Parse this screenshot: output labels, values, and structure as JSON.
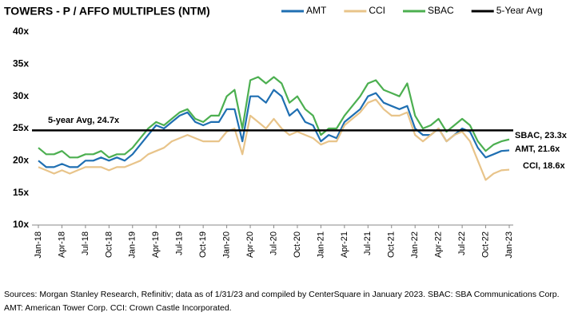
{
  "chart_data": {
    "type": "line",
    "title": "TOWERS - P / AFFO MULTIPLES (NTM)",
    "categories": [
      "Jan-18",
      null,
      null,
      "Apr-18",
      null,
      null,
      "Jul-18",
      null,
      null,
      "Oct-18",
      null,
      null,
      "Jan-19",
      null,
      null,
      "Apr-19",
      null,
      null,
      "Jul-19",
      null,
      null,
      "Oct-19",
      null,
      null,
      "Jan-20",
      null,
      null,
      "Apr-20",
      null,
      null,
      "Jul-20",
      null,
      null,
      "Oct-20",
      null,
      null,
      "Jan-21",
      null,
      null,
      "Apr-21",
      null,
      null,
      "Jul-21",
      null,
      null,
      "Oct-21",
      null,
      null,
      "Jan-22",
      null,
      null,
      "Apr-22",
      null,
      null,
      "Jul-22",
      null,
      null,
      "Oct-22",
      null,
      null,
      "Jan-23"
    ],
    "series": [
      {
        "name": "AMT",
        "color": "#1f6fb2",
        "values": [
          20,
          19,
          19,
          19.5,
          19,
          19,
          20,
          20,
          20.5,
          20,
          20.5,
          20,
          21,
          22.5,
          24,
          25.5,
          25,
          26,
          27,
          27.5,
          26,
          25.5,
          26,
          26,
          28,
          28,
          23,
          30,
          30,
          29,
          31,
          30,
          27,
          28,
          26,
          25.5,
          23,
          24,
          23.5,
          26,
          27,
          28,
          30,
          30.5,
          29,
          28.5,
          28,
          28.5,
          25,
          24,
          24,
          25,
          23,
          24,
          25,
          24.5,
          22,
          20.5,
          21,
          21.5,
          21.6
        ]
      },
      {
        "name": "CCI",
        "color": "#e8c48a",
        "values": [
          19,
          18.5,
          18,
          18.5,
          18,
          18.5,
          19,
          19,
          19,
          18.5,
          19,
          19,
          19.5,
          20,
          21,
          21.5,
          22,
          23,
          23.5,
          24,
          23.5,
          23,
          23,
          23,
          24.5,
          25,
          21,
          27,
          26,
          25,
          26.5,
          25,
          24,
          24.5,
          24,
          23.5,
          22.5,
          23,
          23,
          25.5,
          26.5,
          27.5,
          29,
          29.5,
          28,
          27,
          27,
          27.5,
          24,
          23,
          24,
          25,
          23,
          24,
          24.5,
          23,
          20,
          17,
          18,
          18.5,
          18.6
        ]
      },
      {
        "name": "SBAC",
        "color": "#4caf50",
        "values": [
          22,
          21,
          21,
          21.5,
          20.5,
          20.5,
          21,
          21,
          21.5,
          20.5,
          21,
          21,
          22,
          23.5,
          25,
          26,
          25.5,
          26.5,
          27.5,
          28,
          26.5,
          26,
          27,
          27,
          30,
          31,
          25,
          32.5,
          33,
          32,
          33,
          32,
          29,
          30,
          28,
          27,
          24,
          25,
          25,
          27,
          28.5,
          30,
          32,
          32.5,
          31,
          30.5,
          30,
          32,
          27,
          25,
          25.5,
          26.5,
          24.5,
          25.5,
          26.5,
          25.5,
          23,
          21.5,
          22.5,
          23,
          23.3
        ]
      }
    ],
    "average": {
      "name": "5-Year Avg",
      "color": "#000000",
      "value": 24.7
    },
    "annotations": [
      "5-year Avg, 24.7x",
      "SBAC, 23.3x",
      "AMT, 21.6x",
      "CCI, 18.6x"
    ],
    "ylim": [
      10,
      40
    ],
    "yticks": [
      {
        "value": 10,
        "label": "10x"
      },
      {
        "value": 15,
        "label": "15x"
      },
      {
        "value": 20,
        "label": "20x"
      },
      {
        "value": 25,
        "label": "25x"
      },
      {
        "value": 30,
        "label": "30x"
      },
      {
        "value": 35,
        "label": "35x"
      },
      {
        "value": 40,
        "label": "40x"
      }
    ],
    "legend": "top",
    "footnote": [
      "Sources: Morgan Stanley Research, Refinitiv; data as of 1/31/23 and compiled by CenterSquare in January 2023. SBAC: SBA Communications Corp.",
      "AMT: American Tower Corp. CCI: Crown Castle Incorporated."
    ]
  }
}
